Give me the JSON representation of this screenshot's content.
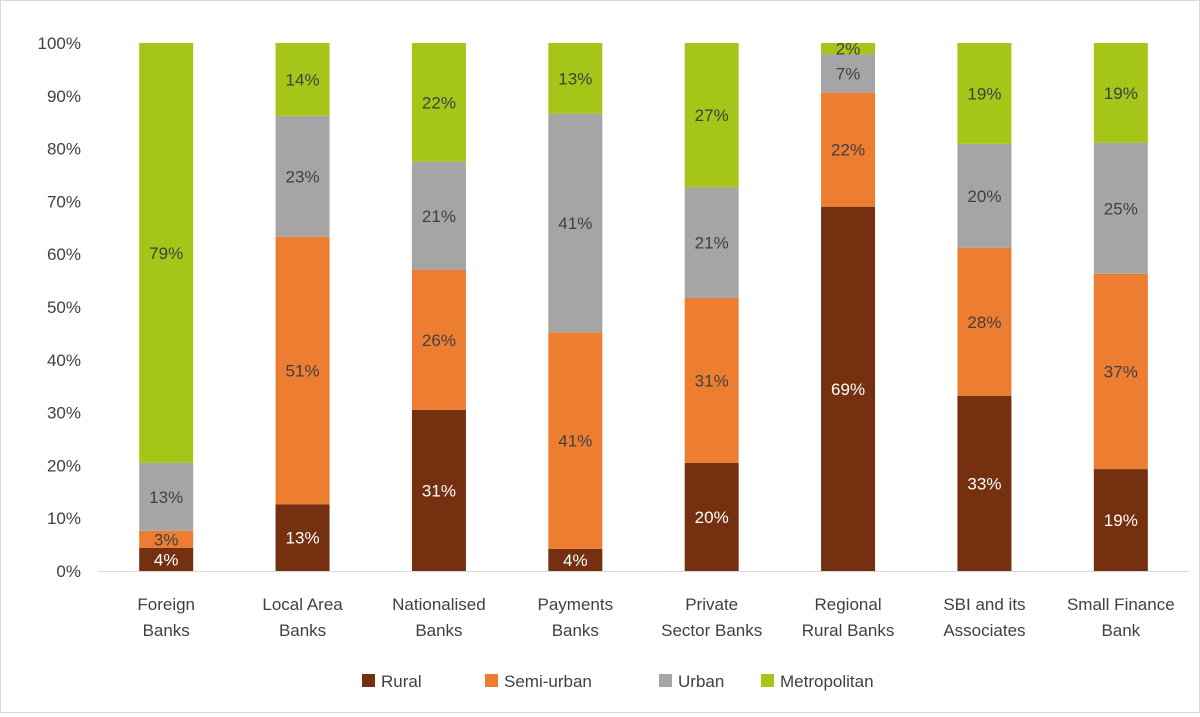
{
  "chart_data": {
    "type": "bar",
    "stacked": true,
    "categories": [
      [
        "Foreign",
        "Banks"
      ],
      [
        "Local Area",
        "Banks"
      ],
      [
        "Nationalised",
        "Banks"
      ],
      [
        "Payments",
        "Banks"
      ],
      [
        "Private",
        "Sector Banks"
      ],
      [
        "Regional",
        "Rural Banks"
      ],
      [
        "SBI and its",
        "Associates"
      ],
      [
        "Small Finance",
        "Bank"
      ]
    ],
    "series": [
      {
        "name": "Rural",
        "color": "#74300f",
        "label_color": "#ffffff",
        "values": [
          4.4,
          12.6,
          30.5,
          4.2,
          20.5,
          69.0,
          33.2,
          19.3
        ],
        "labels": [
          "4%",
          "13%",
          "31%",
          "4%",
          "20%",
          "69%",
          "33%",
          "19%"
        ]
      },
      {
        "name": "Semi-urban",
        "color": "#ed7d31",
        "label_color": "#404040",
        "values": [
          3.2,
          50.7,
          26.5,
          41.0,
          31.2,
          21.6,
          28.0,
          37.0
        ],
        "labels": [
          "3%",
          "51%",
          "26%",
          "41%",
          "31%",
          "22%",
          "28%",
          "37%"
        ]
      },
      {
        "name": "Urban",
        "color": "#a5a5a5",
        "label_color": "#404040",
        "values": [
          12.9,
          22.9,
          20.5,
          41.4,
          21.0,
          7.3,
          19.7,
          24.8
        ],
        "labels": [
          "13%",
          "23%",
          "21%",
          "41%",
          "21%",
          "7%",
          "20%",
          "25%"
        ]
      },
      {
        "name": "Metropolitan",
        "color": "#a5c518",
        "label_color": "#404040",
        "values": [
          79.5,
          13.8,
          22.5,
          13.4,
          27.3,
          2.1,
          19.1,
          18.9
        ],
        "labels": [
          "79%",
          "14%",
          "22%",
          "13%",
          "27%",
          "2%",
          "19%",
          "19%"
        ]
      }
    ],
    "y_ticks": [
      "0%",
      "10%",
      "20%",
      "30%",
      "40%",
      "50%",
      "60%",
      "70%",
      "80%",
      "90%",
      "100%"
    ],
    "ylim": [
      0,
      100
    ],
    "grid": false,
    "legend_position": "bottom",
    "axis_color": "#d9d9d9",
    "text_color": "#404040"
  }
}
